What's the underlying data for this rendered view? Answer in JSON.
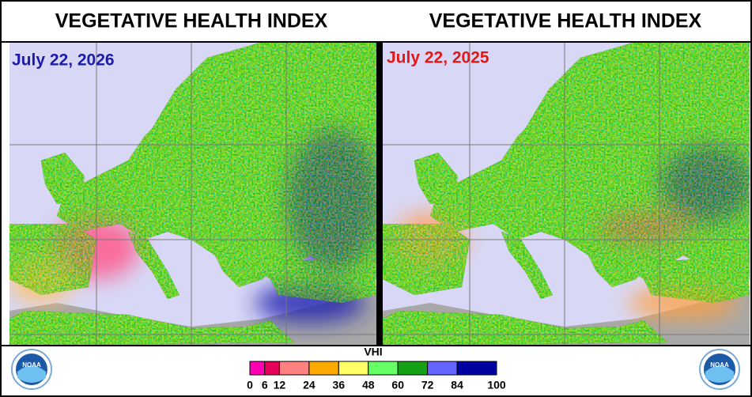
{
  "panels": [
    {
      "title": "VEGETATIVE HEALTH INDEX",
      "date": "July 22, 2026"
    },
    {
      "title": "VEGETATIVE HEALTH INDEX",
      "date": "July 22, 2025"
    }
  ],
  "legend": {
    "title": "VHI",
    "ticks": [
      0,
      6,
      12,
      24,
      36,
      48,
      60,
      72,
      84,
      100
    ],
    "colors": [
      "#ff00b4",
      "#e6005a",
      "#ff8080",
      "#ffaa00",
      "#ffff66",
      "#66ff66",
      "#14a014",
      "#6464ff",
      "#0000a0"
    ]
  }
}
